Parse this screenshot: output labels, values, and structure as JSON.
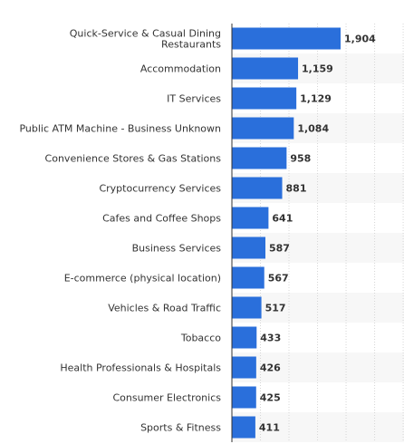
{
  "chart_data": {
    "type": "bar",
    "orientation": "horizontal",
    "categories": [
      [
        "Quick-Service & Casual Dining",
        "Restaurants"
      ],
      [
        "Accommodation"
      ],
      [
        "IT Services"
      ],
      [
        "Public ATM Machine - Business Unknown"
      ],
      [
        "Convenience Stores & Gas Stations"
      ],
      [
        "Cryptocurrency Services"
      ],
      [
        "Cafes and Coffee Shops"
      ],
      [
        "Business Services"
      ],
      [
        "E-commerce (physical location)"
      ],
      [
        "Vehicles & Road Traffic"
      ],
      [
        "Tobacco"
      ],
      [
        "Health Professionals & Hospitals"
      ],
      [
        "Consumer Electronics"
      ],
      [
        "Sports & Fitness"
      ]
    ],
    "values": [
      1904,
      1159,
      1129,
      1084,
      958,
      881,
      641,
      587,
      567,
      517,
      433,
      426,
      425,
      411
    ],
    "value_labels": [
      "1,904",
      "1,159",
      "1,129",
      "1,084",
      "958",
      "881",
      "641",
      "587",
      "567",
      "517",
      "433",
      "426",
      "425",
      "411"
    ],
    "title": "",
    "xlabel": "",
    "ylabel": "",
    "xlim": [
      0,
      3000
    ],
    "grid": true,
    "legend": "none",
    "colors": {
      "bar": "#2a6fdb",
      "band": "#f7f7f7",
      "grid": "#d6d6d6",
      "axis": "#333333",
      "text": "#333333"
    }
  }
}
